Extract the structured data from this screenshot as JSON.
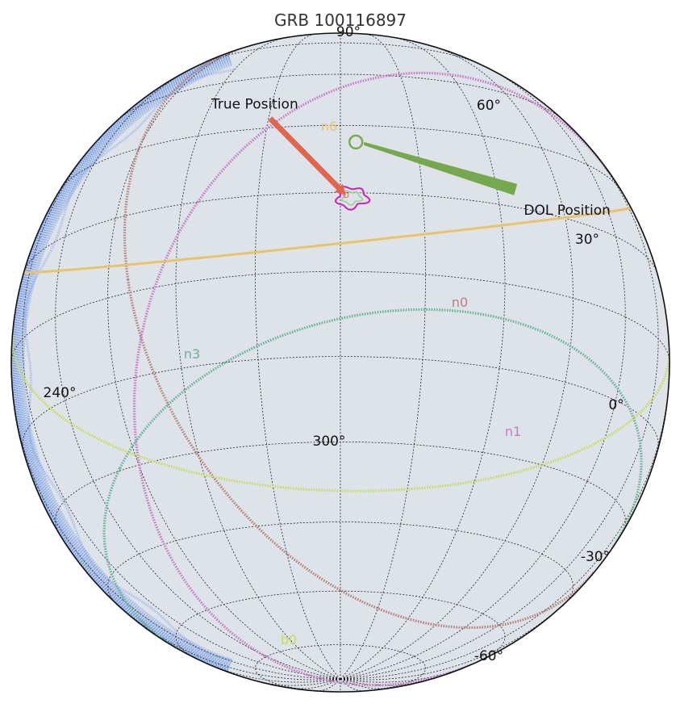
{
  "chart_data": {
    "type": "scatter",
    "projection": "orthographic-sky",
    "title": "GRB 100116897",
    "center": {
      "ra": 300,
      "dec": 0
    },
    "latitude_ticks": [
      {
        "dec": 90,
        "label": "90°"
      },
      {
        "dec": 60,
        "label": "60°"
      },
      {
        "dec": 30,
        "label": "30°"
      },
      {
        "dec": -30,
        "label": "-30°"
      },
      {
        "dec": -60,
        "label": "-60°"
      }
    ],
    "longitude_ticks": [
      {
        "ra": 240,
        "label": "240°"
      },
      {
        "ra": 300,
        "label": "300°"
      },
      {
        "ra": 0,
        "label": "0°"
      }
    ],
    "grid": true,
    "detectors": [
      {
        "name": "n0",
        "center": {
          "ra": 338,
          "dec": 12
        },
        "radius_deg": 78,
        "color": "#b5827a",
        "style": "dotted"
      },
      {
        "name": "n1",
        "center": {
          "ra": 334,
          "dec": -22
        },
        "radius_deg": 70,
        "color": "#c77cc6",
        "style": "dotted"
      },
      {
        "name": "n3",
        "center": {
          "ra": 322,
          "dec": -62
        },
        "radius_deg": 56,
        "color": "#69b493",
        "style": "dotted"
      },
      {
        "name": "n6",
        "center": {
          "ra": 280,
          "dec": 72
        },
        "radius_deg": 68,
        "color": "#e7c36a",
        "style": "solid"
      },
      {
        "name": "b0",
        "center": {
          "ra": 302,
          "dec": 48
        },
        "radius_deg": 87,
        "color": "#c6dc5f",
        "style": "dotted"
      }
    ],
    "earth_occultation": {
      "color": "#4f7fe8",
      "limb": "west"
    },
    "true_position": {
      "ra": 301,
      "dec": 14.5,
      "label": "True Position",
      "color": "#e0664f"
    },
    "dol_position": {
      "ra": 303,
      "dec": 26,
      "label": "DOL Position",
      "color": "#76a84f"
    },
    "localization_contours": [
      {
        "name": "confidence-outer",
        "ra": 302,
        "dec": 14,
        "color": "#cc22bb"
      },
      {
        "name": "confidence-inner",
        "ra": 302,
        "dec": 14,
        "color": "#8fd68c"
      }
    ]
  }
}
